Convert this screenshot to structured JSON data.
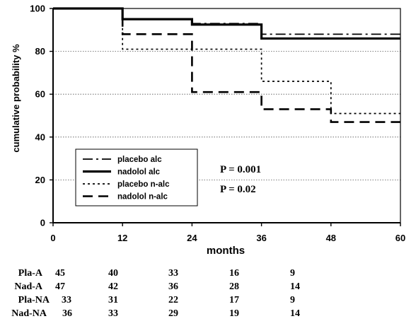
{
  "chart_data": {
    "type": "line",
    "step": true,
    "title": "",
    "xlabel": "months",
    "ylabel": "cumulative probability %",
    "xlim": [
      0,
      60
    ],
    "ylim": [
      0,
      100
    ],
    "xticks": [
      0,
      12,
      24,
      36,
      48,
      60
    ],
    "yticks": [
      0,
      20,
      40,
      60,
      80,
      100
    ],
    "grid": "horizontal dotted",
    "legend_position": "lower-left inside plot",
    "series": [
      {
        "name": "placebo alc",
        "style": "dash-dot",
        "x": [
          0,
          12,
          24,
          36,
          60
        ],
        "y": [
          100,
          95,
          93,
          88,
          88
        ]
      },
      {
        "name": "nadolol alc",
        "style": "solid",
        "x": [
          0,
          12,
          24,
          36,
          60
        ],
        "y": [
          100,
          95,
          92.5,
          86,
          86
        ]
      },
      {
        "name": "placebo n-alc",
        "style": "dotted",
        "x": [
          0,
          12,
          36,
          48,
          60
        ],
        "y": [
          100,
          81,
          66,
          51,
          51
        ]
      },
      {
        "name": "nadolol n-alc",
        "style": "dashed",
        "x": [
          0,
          12,
          24,
          36,
          48,
          60
        ],
        "y": [
          100,
          88,
          61,
          53,
          47,
          47
        ]
      }
    ],
    "annotations": [
      "P = 0.001",
      "P = 0.02"
    ],
    "risk_table": {
      "rows": [
        {
          "label": "Pla-A",
          "values": [
            "45",
            "40",
            "33",
            "16",
            "9"
          ]
        },
        {
          "label": "Nad-A",
          "values": [
            "47",
            "42",
            "36",
            "28",
            "14"
          ]
        },
        {
          "label": "Pla-NA",
          "values": [
            "33",
            "31",
            "22",
            "17",
            "9"
          ]
        },
        {
          "label": "Nad-NA",
          "values": [
            "36",
            "33",
            "29",
            "19",
            "14"
          ]
        }
      ]
    }
  }
}
